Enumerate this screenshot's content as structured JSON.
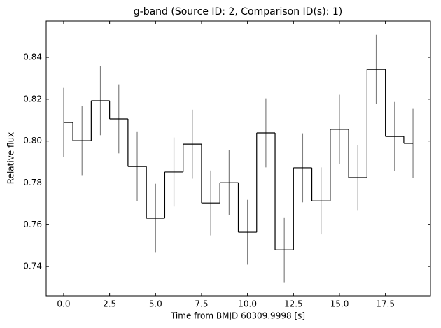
{
  "chart_data": {
    "type": "step",
    "title": "g-band (Source ID: 2, Comparison ID(s): 1)",
    "x_label": "Time from BMJD 60309.9998 [s]",
    "y_label": "Relative flux",
    "x": [
      0,
      1,
      2,
      3,
      4,
      5,
      6,
      7,
      8,
      9,
      10,
      11,
      12,
      13,
      14,
      15,
      16,
      17,
      18,
      19
    ],
    "series": [
      {
        "color": "#000000",
        "error_color": "#808080",
        "values": [
          0.8089,
          0.8002,
          0.8193,
          0.8106,
          0.7878,
          0.7631,
          0.7852,
          0.7985,
          0.7704,
          0.7801,
          0.7564,
          0.8039,
          0.748,
          0.7872,
          0.7714,
          0.8056,
          0.7825,
          0.8343,
          0.8022,
          0.7989
        ],
        "errors": [
          0.0165,
          0.0165,
          0.0165,
          0.0165,
          0.0165,
          0.0165,
          0.0165,
          0.0165,
          0.0155,
          0.0155,
          0.0155,
          0.0165,
          0.0155,
          0.0165,
          0.016,
          0.0165,
          0.0155,
          0.0165,
          0.0165,
          0.0165
        ]
      }
    ],
    "xlim": [
      -0.95,
      19.95
    ],
    "xticks": [
      {
        "value": 0,
        "label": "0.0"
      },
      2.5,
      {
        "value": 5,
        "label": "5.0"
      },
      7.5,
      {
        "value": 10,
        "label": "10.0"
      },
      12.5,
      {
        "value": 15,
        "label": "15.0"
      },
      17.5
    ],
    "ylim": [
      0.726,
      0.8574
    ],
    "yticks": [
      0.74,
      0.76,
      0.78,
      {
        "value": 0.8,
        "label": "0.80"
      },
      0.82,
      0.84
    ],
    "grid": false
  }
}
